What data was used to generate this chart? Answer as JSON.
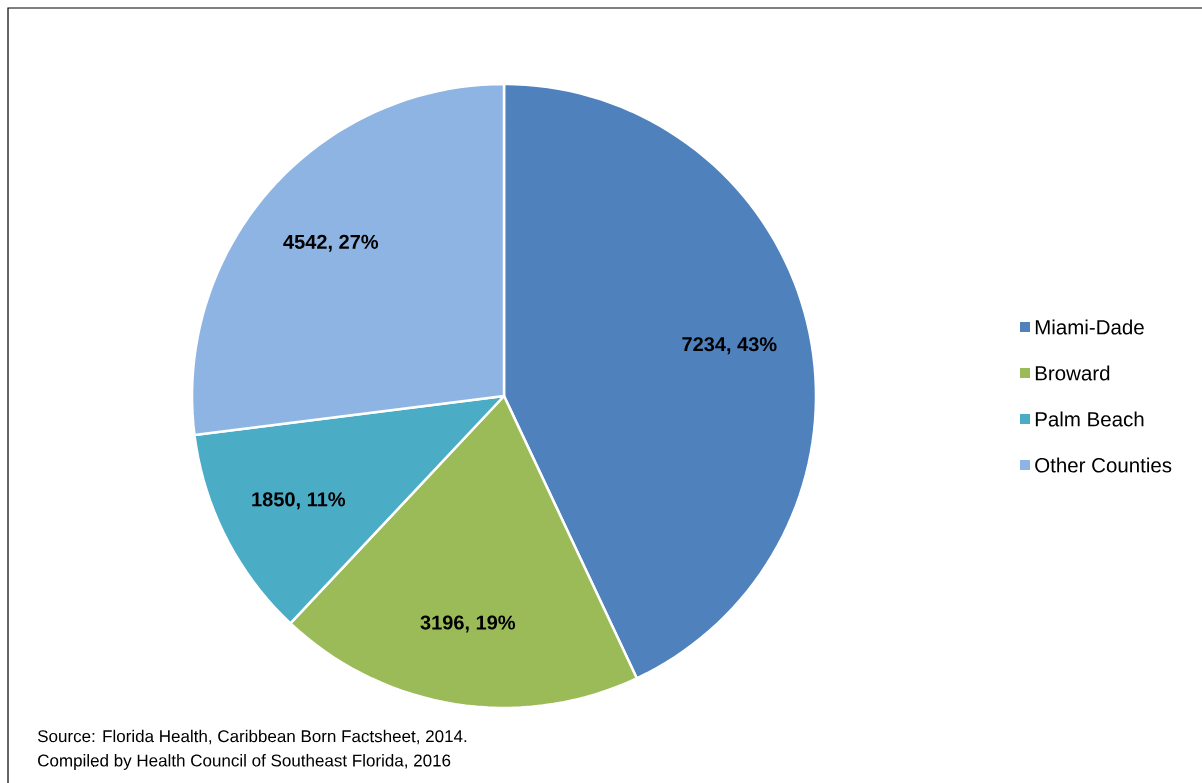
{
  "chart_data": {
    "type": "pie",
    "categories": [
      "Miami-Dade",
      "Broward",
      "Palm Beach",
      "Other Counties"
    ],
    "values": [
      7234,
      3196,
      1850,
      4542
    ],
    "colors": [
      "#4f81bd",
      "#9bbb59",
      "#4bacc6",
      "#8eb4e3"
    ],
    "value_labels": [
      "7234, 43%",
      "3196, 19%",
      "1850, 11%",
      "4542, 27%"
    ],
    "legend": "right",
    "annotations": [
      "Source: Florida Health, Caribbean Born Factsheet, 2014.",
      "Compiled by Health Council of Southeast Florida, 2016"
    ]
  }
}
